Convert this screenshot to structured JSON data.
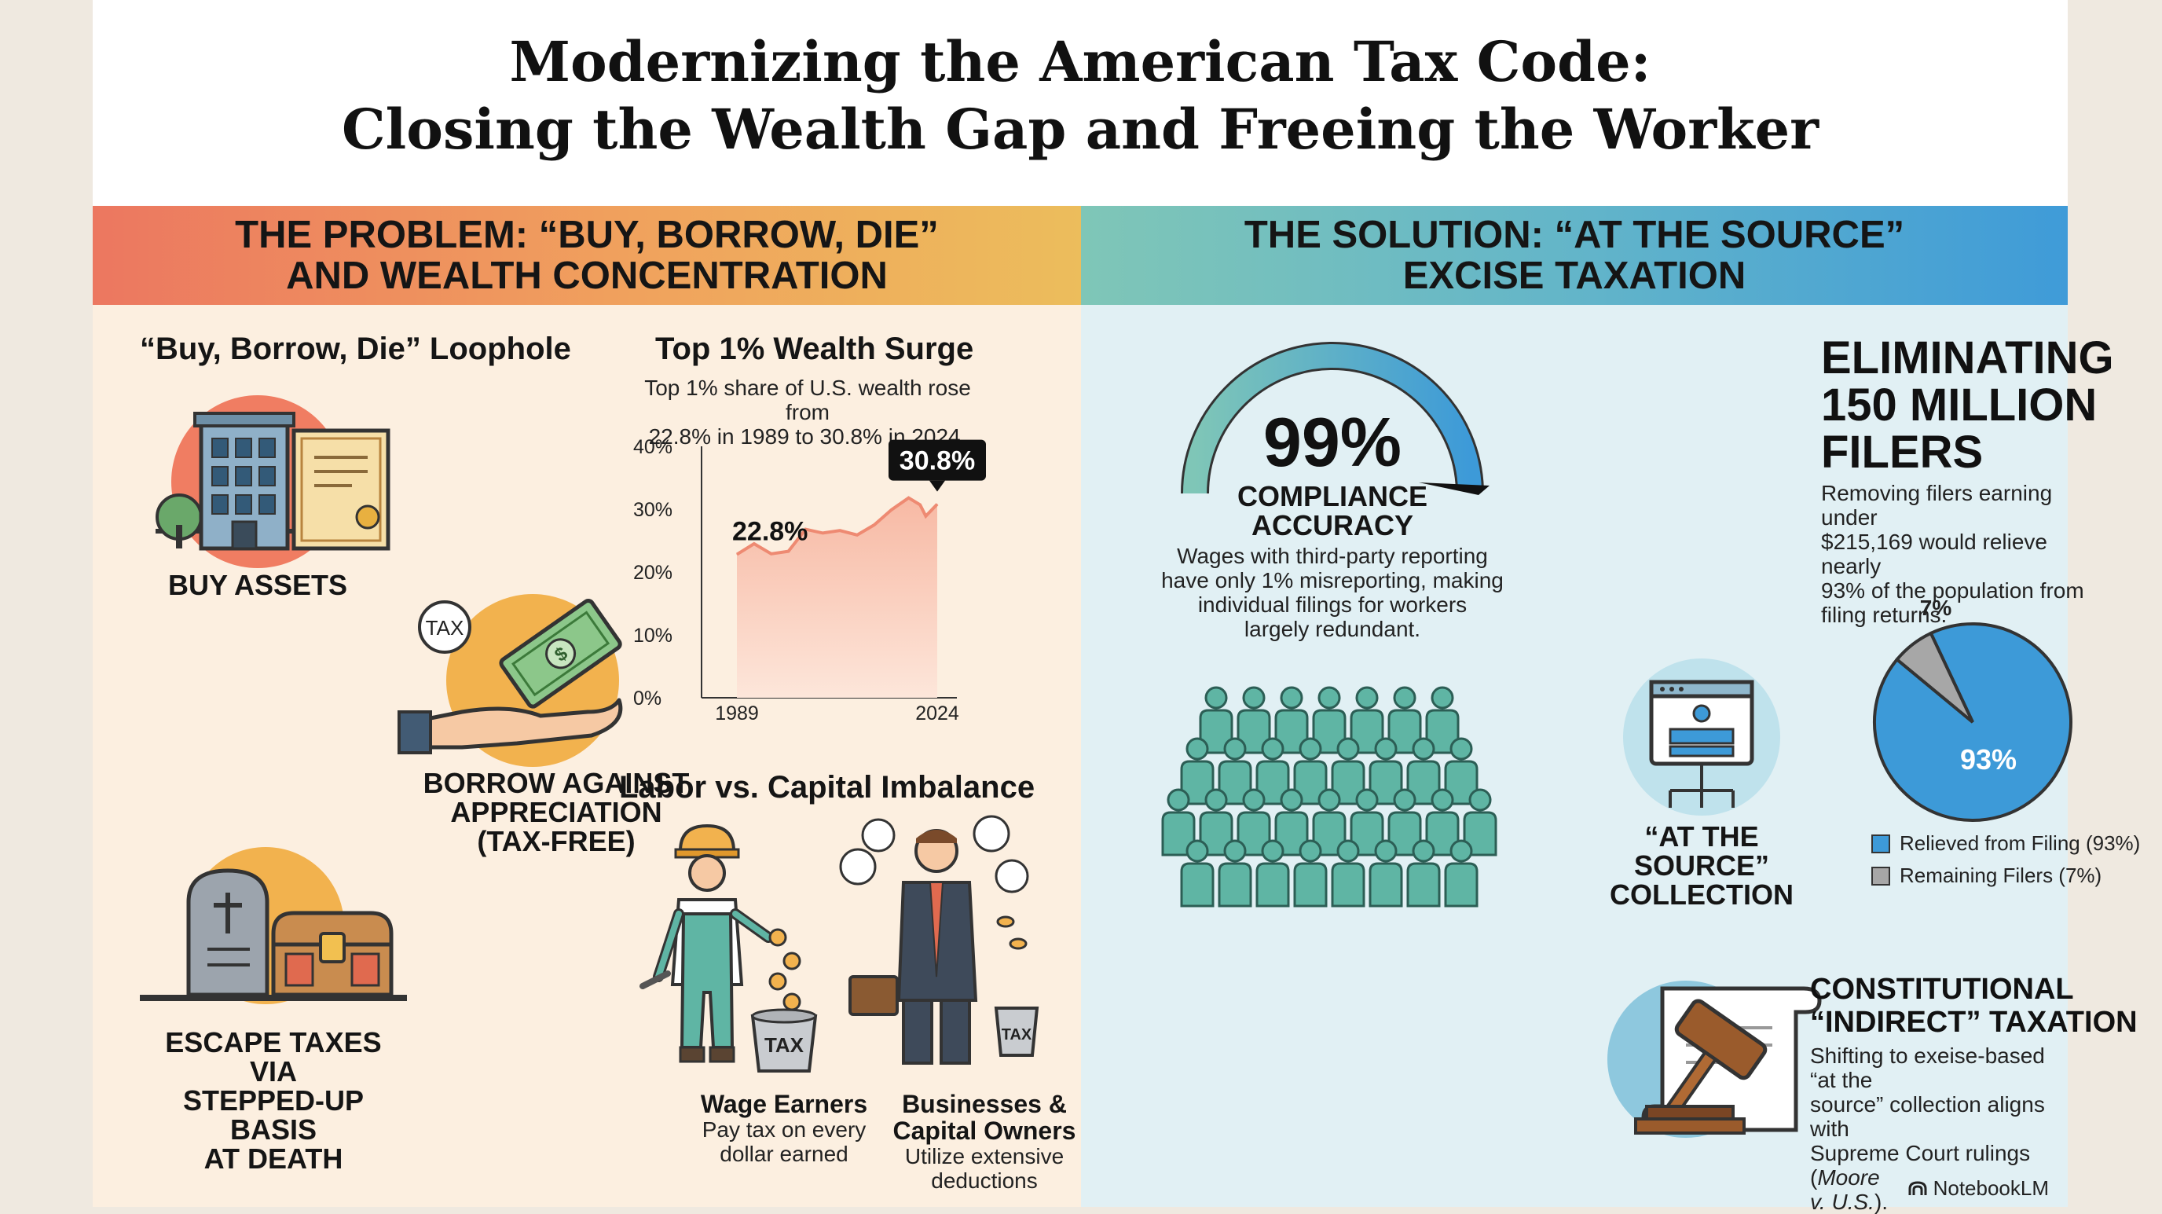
{
  "title": {
    "line1": "Modernizing the American Tax Code:",
    "line2": "Closing the Wealth Gap and Freeing the Worker"
  },
  "problem": {
    "header_line1": "THE PROBLEM: “BUY, BORROW, DIE”",
    "header_line2": "AND WEALTH CONCENTRATION",
    "loophole_title": "“Buy, Borrow, Die” Loophole",
    "step1": "BUY ASSETS",
    "step2_line1": "BORROW AGAINST",
    "step2_line2": "APPRECIATION",
    "step2_line3": "(TAX-FREE)",
    "tax_tag": "TAX",
    "step3_line1": "ESCAPE TAXES VIA",
    "step3_line2": "STEPPED-UP BASIS",
    "step3_line3": "AT DEATH",
    "wealth_title": "Top 1% Wealth Surge",
    "wealth_desc_line1": "Top 1% share of U.S. wealth rose from",
    "wealth_desc_line2": "22.8% in 1989 to 30.8% in 2024.",
    "start_label": "22.8%",
    "end_label": "30.8%",
    "imbalance_title": "Labor vs. Capital Imbalance",
    "wage_title": "Wage Earners",
    "wage_desc_line1": "Pay tax on every",
    "wage_desc_line2": "dollar earned",
    "capital_title_line1": "Businesses &",
    "capital_title_line2": "Capital Owners",
    "capital_desc_line1": "Utilize extensive",
    "capital_desc_line2": "deductions",
    "bucket_label": "TAX"
  },
  "chart_data": {
    "type": "area",
    "title": "Top 1% Wealth Surge",
    "x_tick_labels": [
      "1989",
      "2024"
    ],
    "y_tick_labels": [
      "40%",
      "30%",
      "20%",
      "10%",
      "0%"
    ],
    "ylim": [
      0,
      40
    ],
    "x": [
      1989,
      1992,
      1995,
      1998,
      2001,
      2004,
      2007,
      2010,
      2013,
      2016,
      2019,
      2021,
      2022,
      2024
    ],
    "values": [
      22.8,
      24.5,
      22.9,
      23.3,
      26.8,
      26.2,
      26.6,
      25.9,
      27.5,
      29.9,
      31.8,
      30.7,
      28.9,
      30.8
    ],
    "point_labels": {
      "start": "22.8%",
      "end": "30.8%"
    },
    "colors": {
      "line": "#ee8a72",
      "fill_top": "#f7b9a4",
      "fill_bottom": "#fde6da"
    },
    "grid": false
  },
  "solution": {
    "header_line1": "THE SOLUTION: “AT THE SOURCE”",
    "header_line2": "EXCISE TAXATION",
    "compliance_value": "99%",
    "compliance_label_line1": "COMPLIANCE",
    "compliance_label_line2": "ACCURACY",
    "compliance_fraction": 0.99,
    "compliance_desc_line1": "Wages with third-party reporting",
    "compliance_desc_line2": "have only 1% misreporting, making",
    "compliance_desc_line3": "individual filings for workers",
    "compliance_desc_line4": "largely redundant.",
    "filers_title_line1": "ELIMINATING",
    "filers_title_line2": "150 MILLION",
    "filers_title_line3": "FILERS",
    "filers_desc_line1": "Removing filers earning under",
    "filers_desc_line2": "$215,169 would relieve nearly",
    "filers_desc_line3": "93% of the population from",
    "filers_desc_line4": "filing returns.",
    "source_label_line1": "“AT THE SOURCE”",
    "source_label_line2": "COLLECTION",
    "pie": {
      "slices": [
        {
          "label": "Relieved from Filing (93%)",
          "value": 93,
          "display": "93%",
          "color": "#3d9ad8"
        },
        {
          "label": "Remaining Filers (7%)",
          "value": 7,
          "display": "7%",
          "color": "#a7a7a7"
        }
      ]
    },
    "const_title_line1": "CONSTITUTIONAL",
    "const_title_line2": "“INDIRECT” TAXATION",
    "const_desc_line1": "Shifting to exeise-based “at the",
    "const_desc_line2": "source” collection aligns with",
    "const_desc_line3": "Supreme Court rulings (",
    "const_desc_italic": "Moore",
    "const_desc_line4a": "v. U.S.",
    "const_desc_line4b": ")."
  },
  "watermark": "NotebookLM",
  "colors": {
    "people": "#5fb5a4",
    "accent_blue": "#3d9ad8",
    "accent_orange": "#f0a25d"
  }
}
